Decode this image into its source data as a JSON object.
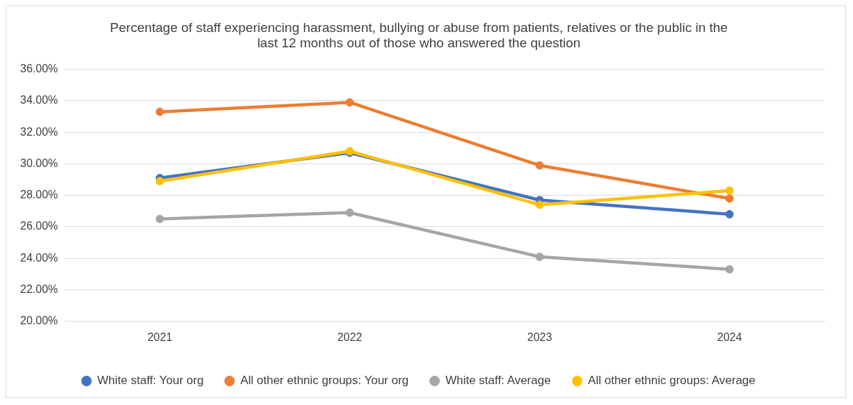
{
  "chart_data": {
    "type": "line",
    "title": "Percentage of staff experiencing harassment, bullying or abuse from patients, relatives or the public in the last 12 months out of those who answered the question",
    "categories": [
      "2021",
      "2022",
      "2023",
      "2024"
    ],
    "series": [
      {
        "name": "White staff: Your org",
        "color": "#4472c4",
        "values": [
          29.1,
          30.7,
          27.7,
          26.8
        ]
      },
      {
        "name": "All other ethnic groups: Your org",
        "color": "#ed7d31",
        "values": [
          33.3,
          33.9,
          29.9,
          27.8
        ]
      },
      {
        "name": "White staff: Average",
        "color": "#a5a5a5",
        "values": [
          26.5,
          26.9,
          24.1,
          23.3
        ]
      },
      {
        "name": "All other ethnic groups: Average",
        "color": "#ffc000",
        "values": [
          28.9,
          30.8,
          27.4,
          28.3
        ]
      }
    ],
    "ylim": [
      20,
      36
    ],
    "yticks": [
      {
        "value": 20,
        "label": "20.00%"
      },
      {
        "value": 22,
        "label": "22.00%"
      },
      {
        "value": 24,
        "label": "24.00%"
      },
      {
        "value": 26,
        "label": "26.00%"
      },
      {
        "value": 28,
        "label": "28.00%"
      },
      {
        "value": 30,
        "label": "30.00%"
      },
      {
        "value": 32,
        "label": "32.00%"
      },
      {
        "value": 34,
        "label": "34.00%"
      },
      {
        "value": 36,
        "label": "36.00%"
      }
    ],
    "grid": "y",
    "legend": "bottom",
    "marker": "circle",
    "line_style": "solid"
  }
}
